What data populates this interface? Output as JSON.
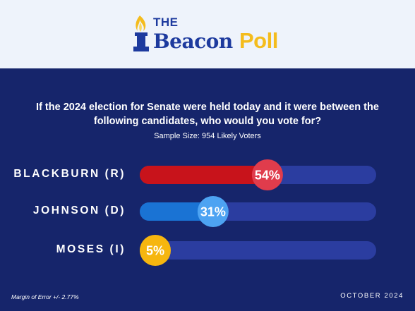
{
  "brand": {
    "the": "THE",
    "name": "Beacon",
    "poll": "Poll"
  },
  "question": "If the 2024 election for Senate were held today and it were between the following candidates, who would you vote for?",
  "sample_size": "Sample Size: 954 Likely Voters",
  "footer": {
    "margin_of_error": "Margin of Error +/- 2.77%",
    "date": "OCTOBER 2024"
  },
  "colors": {
    "background": "#16256b",
    "header": "#eef3fb",
    "track": "#2b3da0",
    "brand_blue": "#1d3a9e",
    "brand_gold": "#f4bc1d"
  },
  "chart_data": {
    "type": "bar",
    "orientation": "horizontal",
    "categories": [
      "BLACKBURN (R)",
      "JOHNSON (D)",
      "MOSES (I)"
    ],
    "values": [
      54,
      31,
      5
    ],
    "value_labels": [
      "54%",
      "31%",
      "5%"
    ],
    "unit": "%",
    "xlim": [
      0,
      100
    ],
    "bar_colors": [
      "#c8131b",
      "#1a73d4",
      "#f6b60f"
    ],
    "marker_colors": [
      "#e03c4c",
      "#4da3f2",
      "#f6b60f"
    ],
    "grid": false,
    "legend": "none"
  }
}
